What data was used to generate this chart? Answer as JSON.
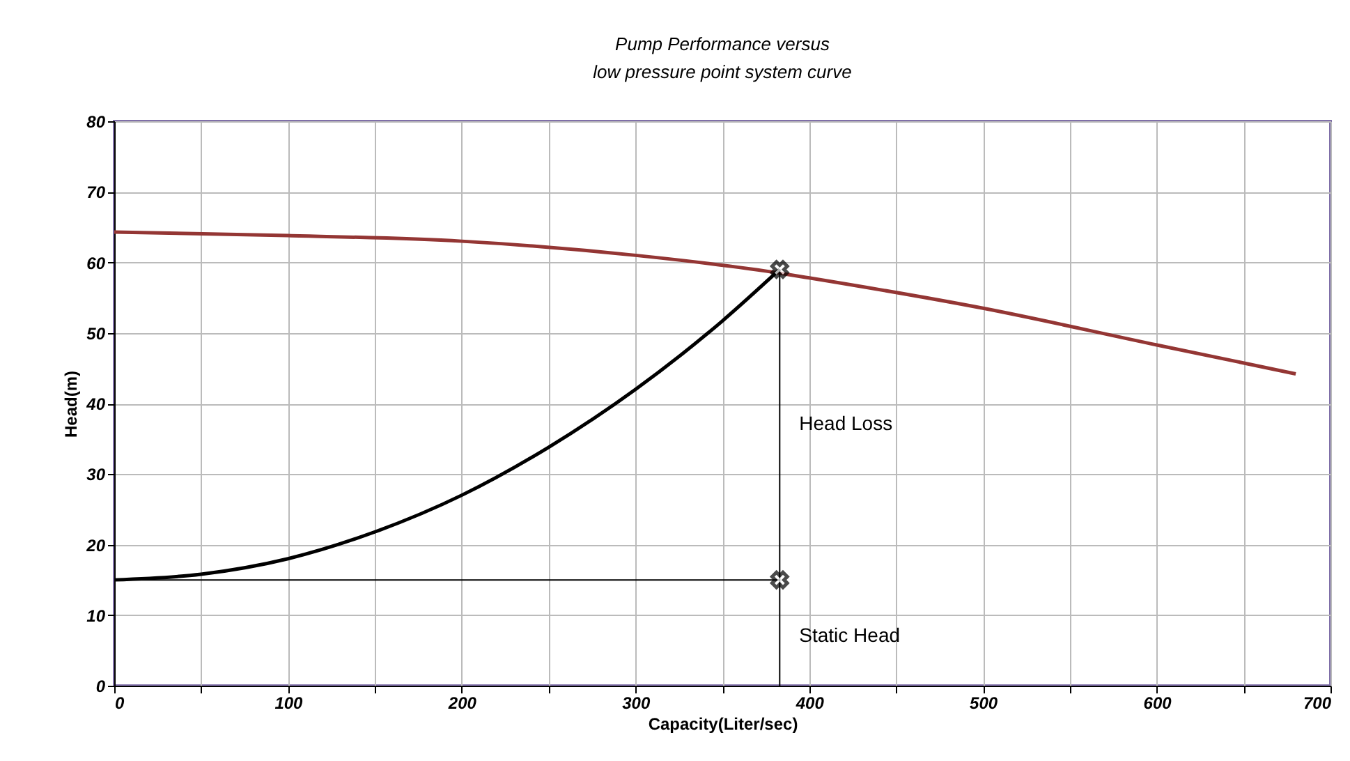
{
  "chart_data": {
    "type": "line",
    "title": "Pump Performance versus\nlow pressure point system curve",
    "xlabel": "Capacity(Liter/sec)",
    "ylabel": "Head(m)",
    "xlim": [
      0,
      700
    ],
    "ylim": [
      0,
      80
    ],
    "xticks": [
      0,
      {
        "value": 50,
        "label": null
      },
      100,
      {
        "value": 150,
        "label": null
      },
      200,
      {
        "value": 250,
        "label": null
      },
      300,
      {
        "value": 350,
        "label": null
      },
      400,
      {
        "value": 450,
        "label": null
      },
      500,
      {
        "value": 550,
        "label": null
      },
      600,
      {
        "value": 650,
        "label": null
      },
      700
    ],
    "yticks": [
      0,
      10,
      20,
      30,
      40,
      50,
      60,
      70,
      80
    ],
    "grid": true,
    "series": [
      {
        "color": "#943634",
        "x": [
          0,
          100,
          200,
          300,
          385,
          400,
          500,
          600,
          680
        ],
        "values": [
          64.3,
          63.8,
          63,
          61,
          58.4,
          57.8,
          53.5,
          48.3,
          44.2
        ]
      },
      {
        "color": "#000000",
        "x": [
          0,
          50,
          100,
          150,
          200,
          250,
          300,
          350,
          383
        ],
        "values": [
          15,
          15.8,
          18,
          21.8,
          27,
          33.8,
          42,
          51.7,
          59
        ]
      },
      {
        "color": "#000000",
        "x": [
          0,
          383
        ],
        "values": [
          15,
          15
        ]
      },
      {
        "color": "#000000",
        "x": [
          383,
          383
        ],
        "values": [
          0,
          59
        ]
      },
      {
        "type": "scatter",
        "color": "#000000",
        "marker": "cross",
        "x": [
          383,
          383
        ],
        "values": [
          59,
          15
        ]
      }
    ],
    "annotations": [
      {
        "text": "Head Loss",
        "x": 383,
        "y": 37
      },
      {
        "text": "Static Head",
        "x": 383,
        "y": 7
      }
    ]
  }
}
